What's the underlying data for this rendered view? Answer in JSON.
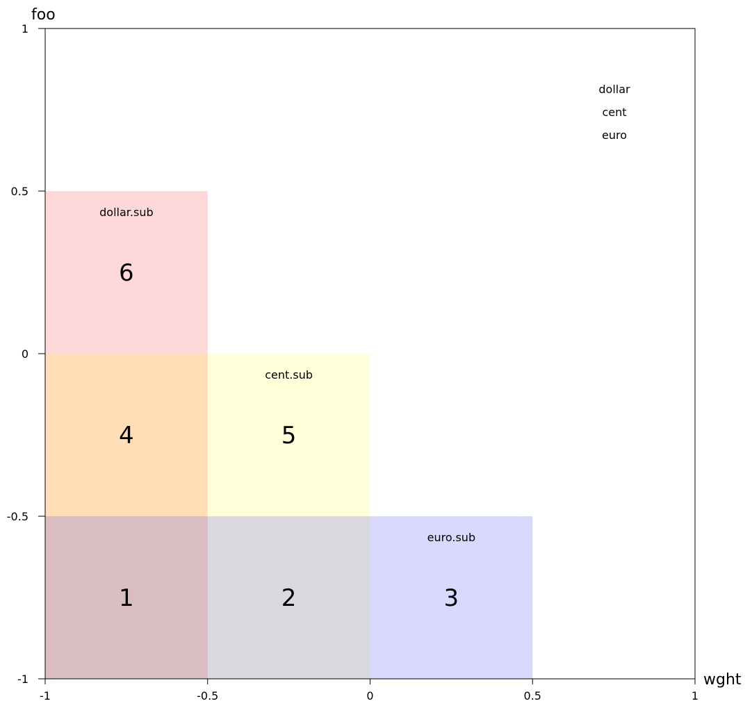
{
  "axes": {
    "x": {
      "title": "wght",
      "min": -1,
      "max": 1,
      "ticks": [
        "-1",
        "-0.5",
        "0",
        "0.5",
        "1"
      ],
      "tick_values": [
        -1,
        -0.5,
        0,
        0.5,
        1
      ]
    },
    "y": {
      "title": "foo",
      "min": -1,
      "max": 1,
      "ticks": [
        "-1",
        "-0.5",
        "0",
        "0.5",
        "1"
      ],
      "tick_values": [
        -1,
        -0.5,
        0,
        0.5,
        1
      ]
    }
  },
  "legend": [
    "dollar",
    "cent",
    "euro"
  ],
  "masters": [
    {
      "name": "dollar.sub",
      "color": "#ff0000",
      "x": [
        -1,
        -0.5
      ],
      "y": [
        -1,
        0.5
      ]
    },
    {
      "name": "cent.sub",
      "color": "#ffff00",
      "x": [
        -1,
        0
      ],
      "y": [
        -1,
        0
      ]
    },
    {
      "name": "euro.sub",
      "color": "#0000ff",
      "x": [
        -1,
        0.5
      ],
      "y": [
        -1,
        -0.5
      ]
    }
  ],
  "regions": [
    {
      "number": "1",
      "x": [
        -1,
        -0.5
      ],
      "y": [
        -1,
        -0.5
      ]
    },
    {
      "number": "2",
      "x": [
        -0.5,
        0
      ],
      "y": [
        -1,
        -0.5
      ]
    },
    {
      "number": "3",
      "x": [
        0,
        0.5
      ],
      "y": [
        -1,
        -0.5
      ]
    },
    {
      "number": "4",
      "x": [
        -1,
        -0.5
      ],
      "y": [
        -0.5,
        0
      ]
    },
    {
      "number": "5",
      "x": [
        -0.5,
        0
      ],
      "y": [
        -0.5,
        0
      ]
    },
    {
      "number": "6",
      "x": [
        -1,
        -0.5
      ],
      "y": [
        0,
        0.5
      ]
    }
  ]
}
